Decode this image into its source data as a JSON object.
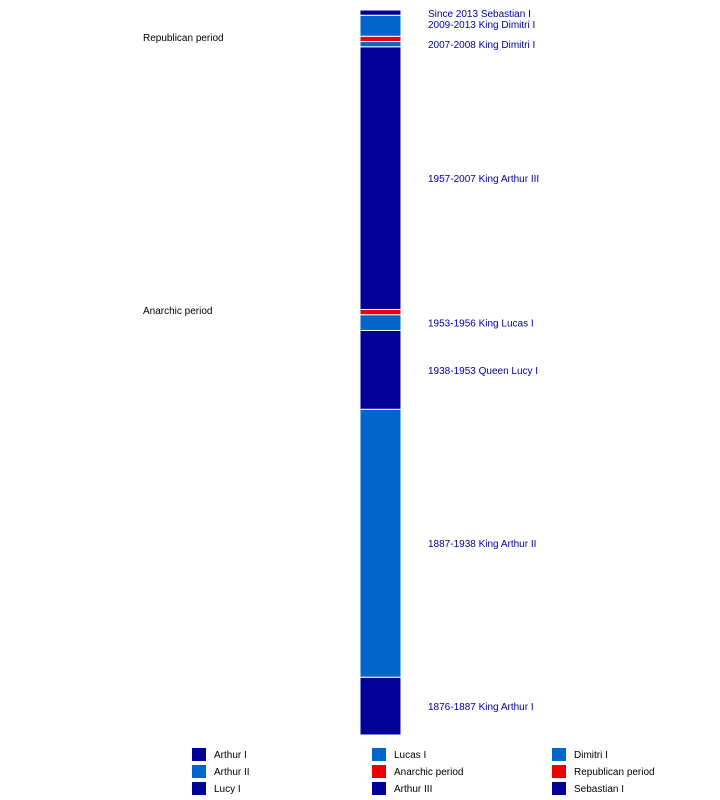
{
  "chart_data": {
    "type": "bar",
    "orientation": "vertical-stacked-timeline",
    "y_units": "year",
    "ylim": [
      1876,
      2014
    ],
    "segments": [
      {
        "name": "Arthur I",
        "start": 1876,
        "end": 1887,
        "color": "#000099",
        "label": "1876-1887 King Arthur I"
      },
      {
        "name": "Arthur II",
        "start": 1887,
        "end": 1938,
        "color": "#0066CC",
        "label": "1887-1938 King Arthur II"
      },
      {
        "name": "Lucy I",
        "start": 1938,
        "end": 1953,
        "color": "#000099",
        "label": "1938-1953 Queen Lucy I"
      },
      {
        "name": "Lucas I",
        "start": 1953,
        "end": 1956,
        "color": "#0066CC",
        "label": "1953-1956 King Lucas I"
      },
      {
        "name": "Anarchic period",
        "start": 1956,
        "end": 1957,
        "color": "#EE0000",
        "label": ""
      },
      {
        "name": "Arthur III",
        "start": 1957,
        "end": 2007,
        "color": "#000099",
        "label": "1957-2007 King Arthur III"
      },
      {
        "name": "Dimitri I",
        "start": 2007,
        "end": 2008,
        "color": "#0066CC",
        "label": "2007-2008 King Dimitri I"
      },
      {
        "name": "Republican period",
        "start": 2008,
        "end": 2009,
        "color": "#EE0000",
        "label": ""
      },
      {
        "name": "Dimitri I",
        "start": 2009,
        "end": 2013,
        "color": "#0066CC",
        "label": "2009-2013 King Dimitri I"
      },
      {
        "name": "Sebastian I",
        "start": 2013,
        "end": 2014,
        "color": "#000099",
        "label": "Since 2013 Sebastian I"
      }
    ],
    "period_labels": [
      {
        "text": "Republican period",
        "year": 2008.5
      },
      {
        "text": "Anarchic period",
        "year": 1956.5
      }
    ],
    "legend": [
      {
        "label": "Arthur I",
        "color": "#000099"
      },
      {
        "label": "Lucas I",
        "color": "#0066CC"
      },
      {
        "label": "Dimitri I",
        "color": "#0066CC"
      },
      {
        "label": "Arthur II",
        "color": "#0066CC"
      },
      {
        "label": "Anarchic period",
        "color": "#EE0000"
      },
      {
        "label": "Republican period",
        "color": "#EE0000"
      },
      {
        "label": "Lucy I",
        "color": "#000099"
      },
      {
        "label": "Arthur III",
        "color": "#000099"
      },
      {
        "label": "Sebastian I",
        "color": "#000099"
      }
    ],
    "legend_placement": "bottom",
    "label_color": "#000099"
  }
}
